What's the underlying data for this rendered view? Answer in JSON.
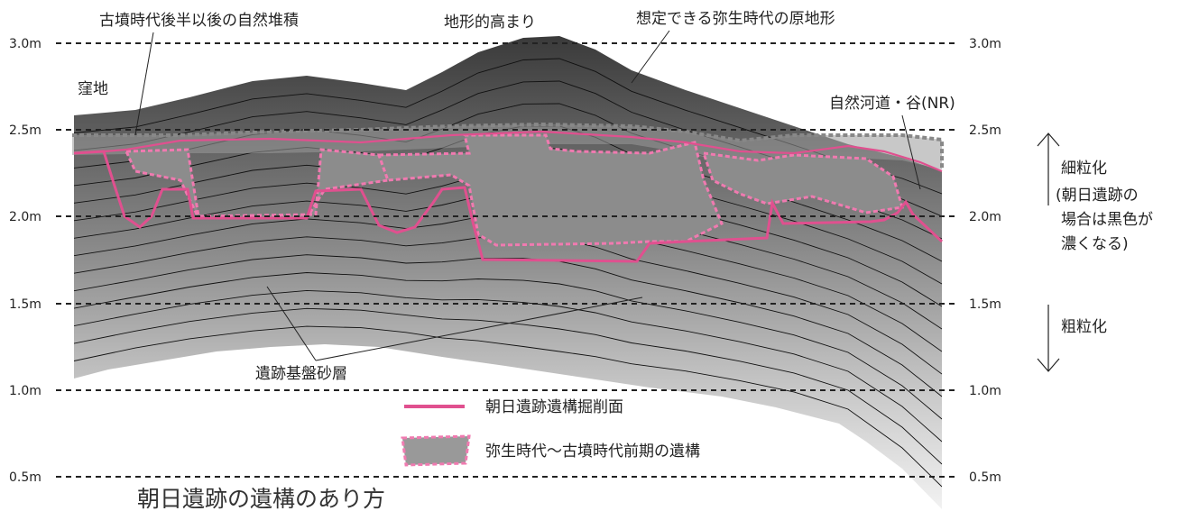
{
  "title": "朝日遺跡の遺構のあり方",
  "axis": {
    "left_ticks": [
      "3.0m",
      "2.5m",
      "2.0m",
      "1.5m",
      "1.0m",
      "0.5m"
    ],
    "right_ticks": [
      "3.0m",
      "2.5m",
      "2.0m",
      "1.5m",
      "1.0m",
      "0.5m"
    ]
  },
  "annotations": {
    "natural_deposit": "古墳時代後半以後の自然堆積",
    "topographic_high": "地形的高まり",
    "yayoi_original_terrain": "想定できる弥生時代の原地形",
    "depression": "窪地",
    "natural_river": "自然河道・谷(NR)",
    "base_sand_layer": "遺跡基盤砂層"
  },
  "grain_scale": {
    "fine": "細粒化",
    "fine_note_1": "(朝日遺跡の",
    "fine_note_2": "場合は黒色が",
    "fine_note_3": "濃くなる)",
    "coarse": "粗粒化"
  },
  "legend": {
    "excavation_surface": "朝日遺跡遺構掘削面",
    "features": "弥生時代～古墳時代前期の遺構"
  },
  "colors": {
    "excavation_line": "#e0508f",
    "feature_border": "#f07ab0",
    "dark_top": "#3a3a3a",
    "light_bottom": "#f0f0f0"
  }
}
